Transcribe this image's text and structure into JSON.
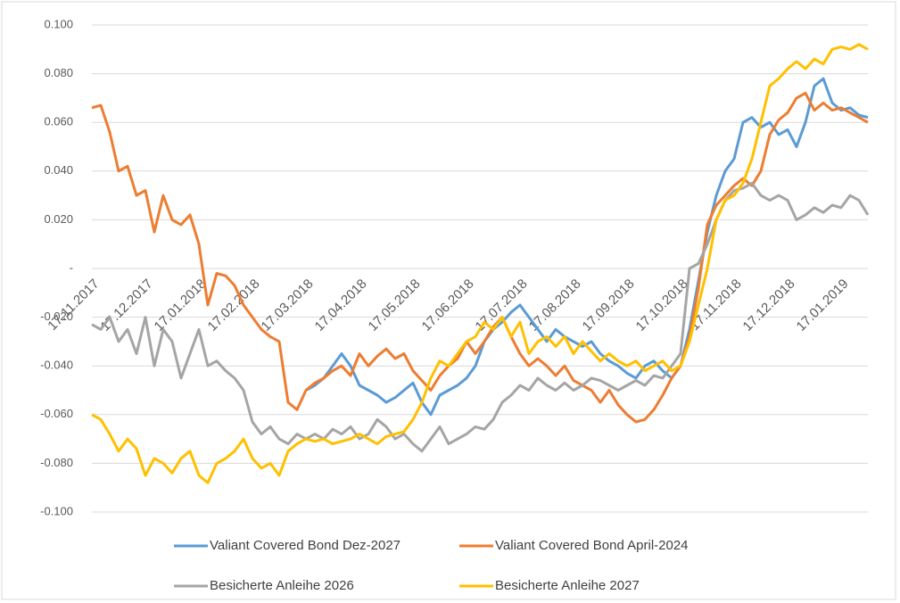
{
  "chart_data": {
    "type": "line",
    "categories": [
      "17.11.2017",
      null,
      null,
      null,
      null,
      null,
      "17.12.2017",
      null,
      null,
      null,
      null,
      null,
      "17.01.2018",
      null,
      null,
      null,
      null,
      null,
      "17.02.2018",
      null,
      null,
      null,
      null,
      null,
      "17.03.2018",
      null,
      null,
      null,
      null,
      null,
      "17.04.2018",
      null,
      null,
      null,
      null,
      null,
      "17.05.2018",
      null,
      null,
      null,
      null,
      null,
      "17.06.2018",
      null,
      null,
      null,
      null,
      null,
      "17.07.2018",
      null,
      null,
      null,
      null,
      null,
      "17.08.2018",
      null,
      null,
      null,
      null,
      null,
      "17.09.2018",
      null,
      null,
      null,
      null,
      null,
      "17.10.2018",
      null,
      null,
      null,
      null,
      null,
      "17.11.2018",
      null,
      null,
      null,
      null,
      null,
      "17.12.2018",
      null,
      null,
      null,
      null,
      null,
      "17.01.2019",
      null,
      null,
      null
    ],
    "series": [
      {
        "name": "Valiant Covered Bond Dez-2027",
        "color": "#5b9bd5",
        "values": [
          null,
          null,
          null,
          null,
          null,
          null,
          null,
          null,
          null,
          null,
          null,
          null,
          null,
          null,
          null,
          null,
          null,
          null,
          null,
          null,
          null,
          null,
          null,
          null,
          -0.05,
          -0.048,
          -0.045,
          -0.04,
          -0.035,
          -0.04,
          -0.048,
          -0.05,
          -0.052,
          -0.055,
          -0.053,
          -0.05,
          -0.047,
          -0.055,
          -0.06,
          -0.052,
          -0.05,
          -0.048,
          -0.045,
          -0.04,
          -0.03,
          -0.025,
          -0.022,
          -0.018,
          -0.015,
          -0.02,
          -0.025,
          -0.03,
          -0.025,
          -0.028,
          -0.03,
          -0.032,
          -0.03,
          -0.035,
          -0.038,
          -0.04,
          -0.043,
          -0.045,
          -0.04,
          -0.038,
          -0.042,
          -0.045,
          -0.04,
          -0.025,
          -0.005,
          0.015,
          0.03,
          0.04,
          0.045,
          0.06,
          0.062,
          0.058,
          0.06,
          0.055,
          0.057,
          0.05,
          0.06,
          0.075,
          0.078,
          0.068,
          0.065,
          0.066,
          0.063,
          0.062
        ]
      },
      {
        "name": "Valiant Covered Bond April-2024",
        "color": "#ed7d31",
        "values": [
          0.066,
          0.067,
          0.056,
          0.04,
          0.042,
          0.03,
          0.032,
          0.015,
          0.03,
          0.02,
          0.018,
          0.022,
          0.01,
          -0.015,
          -0.002,
          -0.003,
          -0.007,
          -0.015,
          -0.02,
          -0.025,
          -0.028,
          -0.03,
          -0.055,
          -0.058,
          -0.05,
          -0.047,
          -0.045,
          -0.042,
          -0.04,
          -0.044,
          -0.035,
          -0.04,
          -0.036,
          -0.033,
          -0.037,
          -0.035,
          -0.042,
          -0.046,
          -0.05,
          -0.044,
          -0.04,
          -0.037,
          -0.03,
          -0.035,
          -0.03,
          -0.024,
          -0.02,
          -0.028,
          -0.035,
          -0.04,
          -0.037,
          -0.04,
          -0.044,
          -0.04,
          -0.046,
          -0.048,
          -0.05,
          -0.055,
          -0.05,
          -0.056,
          -0.06,
          -0.063,
          -0.062,
          -0.058,
          -0.052,
          -0.045,
          -0.04,
          -0.028,
          -0.008,
          0.018,
          0.026,
          0.03,
          0.034,
          0.037,
          0.034,
          0.04,
          0.055,
          0.061,
          0.064,
          0.07,
          0.072,
          0.065,
          0.068,
          0.065,
          0.066,
          0.064,
          0.062,
          0.06
        ]
      },
      {
        "name": "Besicherte Anleihe 2026",
        "color": "#a5a5a5",
        "values": [
          -0.023,
          -0.025,
          -0.02,
          -0.03,
          -0.025,
          -0.035,
          -0.02,
          -0.04,
          -0.025,
          -0.03,
          -0.045,
          -0.035,
          -0.025,
          -0.04,
          -0.038,
          -0.042,
          -0.045,
          -0.05,
          -0.063,
          -0.068,
          -0.065,
          -0.07,
          -0.072,
          -0.068,
          -0.07,
          -0.068,
          -0.07,
          -0.066,
          -0.068,
          -0.065,
          -0.07,
          -0.068,
          -0.062,
          -0.065,
          -0.07,
          -0.068,
          -0.072,
          -0.075,
          -0.07,
          -0.065,
          -0.072,
          -0.07,
          -0.068,
          -0.065,
          -0.066,
          -0.062,
          -0.055,
          -0.052,
          -0.048,
          -0.05,
          -0.045,
          -0.048,
          -0.05,
          -0.047,
          -0.05,
          -0.048,
          -0.045,
          -0.046,
          -0.048,
          -0.05,
          -0.048,
          -0.046,
          -0.048,
          -0.044,
          -0.045,
          -0.04,
          -0.035,
          0.0,
          0.002,
          0.01,
          0.02,
          0.028,
          0.032,
          0.033,
          0.035,
          0.03,
          0.028,
          0.03,
          0.028,
          0.02,
          0.022,
          0.025,
          0.023,
          0.026,
          0.025,
          0.03,
          0.028,
          0.022
        ]
      },
      {
        "name": "Besicherte Anleihe 2027",
        "color": "#ffc000",
        "values": [
          -0.06,
          -0.062,
          -0.068,
          -0.075,
          -0.07,
          -0.074,
          -0.085,
          -0.078,
          -0.08,
          -0.084,
          -0.078,
          -0.075,
          -0.085,
          -0.088,
          -0.08,
          -0.078,
          -0.075,
          -0.07,
          -0.078,
          -0.082,
          -0.08,
          -0.085,
          -0.075,
          -0.072,
          -0.07,
          -0.071,
          -0.07,
          -0.072,
          -0.071,
          -0.07,
          -0.068,
          -0.07,
          -0.072,
          -0.069,
          -0.068,
          -0.067,
          -0.062,
          -0.055,
          -0.045,
          -0.038,
          -0.04,
          -0.035,
          -0.03,
          -0.028,
          -0.022,
          -0.025,
          -0.02,
          -0.028,
          -0.022,
          -0.035,
          -0.03,
          -0.028,
          -0.032,
          -0.028,
          -0.035,
          -0.03,
          -0.034,
          -0.038,
          -0.035,
          -0.038,
          -0.04,
          -0.038,
          -0.042,
          -0.04,
          -0.038,
          -0.042,
          -0.04,
          -0.03,
          -0.015,
          0.0,
          0.02,
          0.028,
          0.03,
          0.035,
          0.045,
          0.06,
          0.075,
          0.078,
          0.082,
          0.085,
          0.082,
          0.086,
          0.084,
          0.09,
          0.091,
          0.09,
          0.092,
          0.09
        ]
      }
    ],
    "ylim": [
      -0.1,
      0.1
    ],
    "yticks": [
      {
        "value": 0.1,
        "label": "0.100"
      },
      {
        "value": 0.08,
        "label": "0.080"
      },
      {
        "value": 0.06,
        "label": "0.060"
      },
      {
        "value": 0.04,
        "label": "0.040"
      },
      {
        "value": 0.02,
        "label": "0.020"
      },
      {
        "value": 0,
        "label": "-"
      },
      {
        "value": -0.02,
        "label": "-0.020"
      },
      {
        "value": -0.04,
        "label": "-0.040"
      },
      {
        "value": -0.06,
        "label": "-0.060"
      },
      {
        "value": -0.08,
        "label": "-0.080"
      },
      {
        "value": -0.1,
        "label": "-0.100"
      }
    ],
    "grid": true,
    "legend": "bottom"
  }
}
